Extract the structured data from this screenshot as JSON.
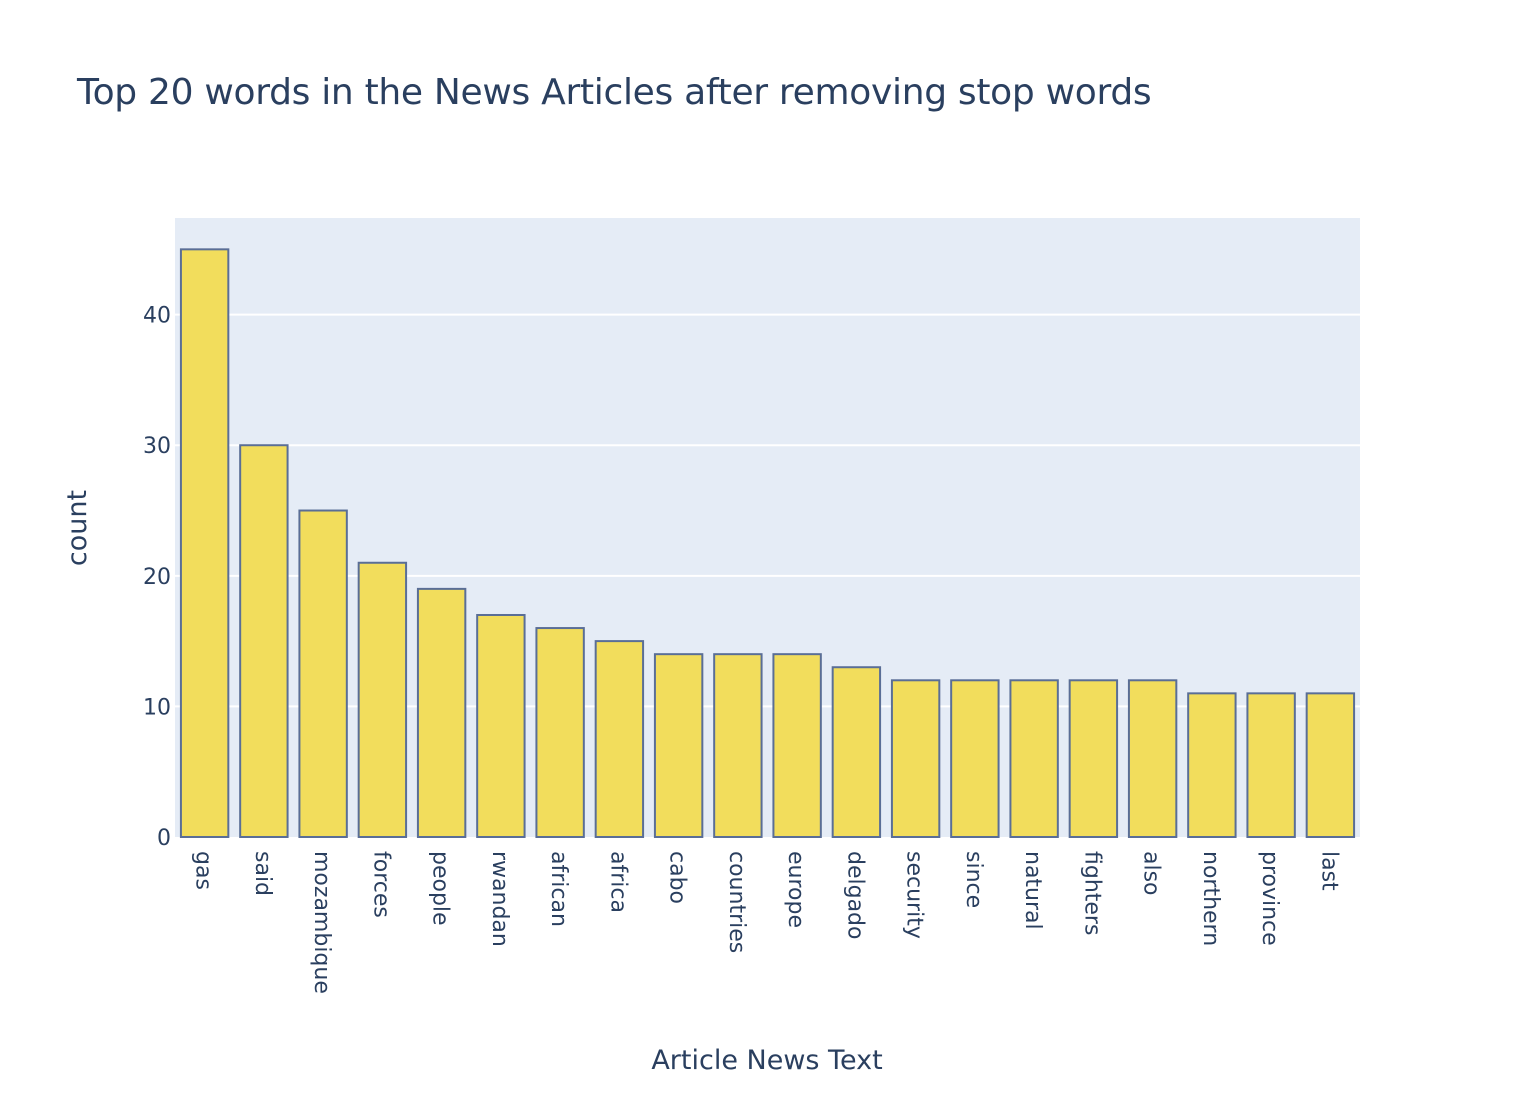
{
  "chart_data": {
    "type": "bar",
    "title": "Top 20 words in the News Articles after removing stop words",
    "xlabel": "Article News Text",
    "ylabel": "count",
    "categories": [
      "gas",
      "said",
      "mozambique",
      "forces",
      "people",
      "rwandan",
      "african",
      "africa",
      "cabo",
      "countries",
      "europe",
      "delgado",
      "security",
      "since",
      "natural",
      "fighters",
      "also",
      "northern",
      "province",
      "last"
    ],
    "values": [
      45,
      30,
      25,
      21,
      19,
      17,
      16,
      15,
      14,
      14,
      14,
      13,
      12,
      12,
      12,
      12,
      12,
      11,
      11,
      11
    ],
    "ylim": [
      0,
      47.4
    ],
    "yticks": [
      0,
      10,
      20,
      30,
      40
    ],
    "grid": true,
    "legend": "none",
    "colors": {
      "bar_fill": "#f2dd5c",
      "bar_stroke": "#5a6e96",
      "plot_bg": "#e5ecf6",
      "grid": "#ffffff",
      "text": "#2a3f5f"
    }
  }
}
